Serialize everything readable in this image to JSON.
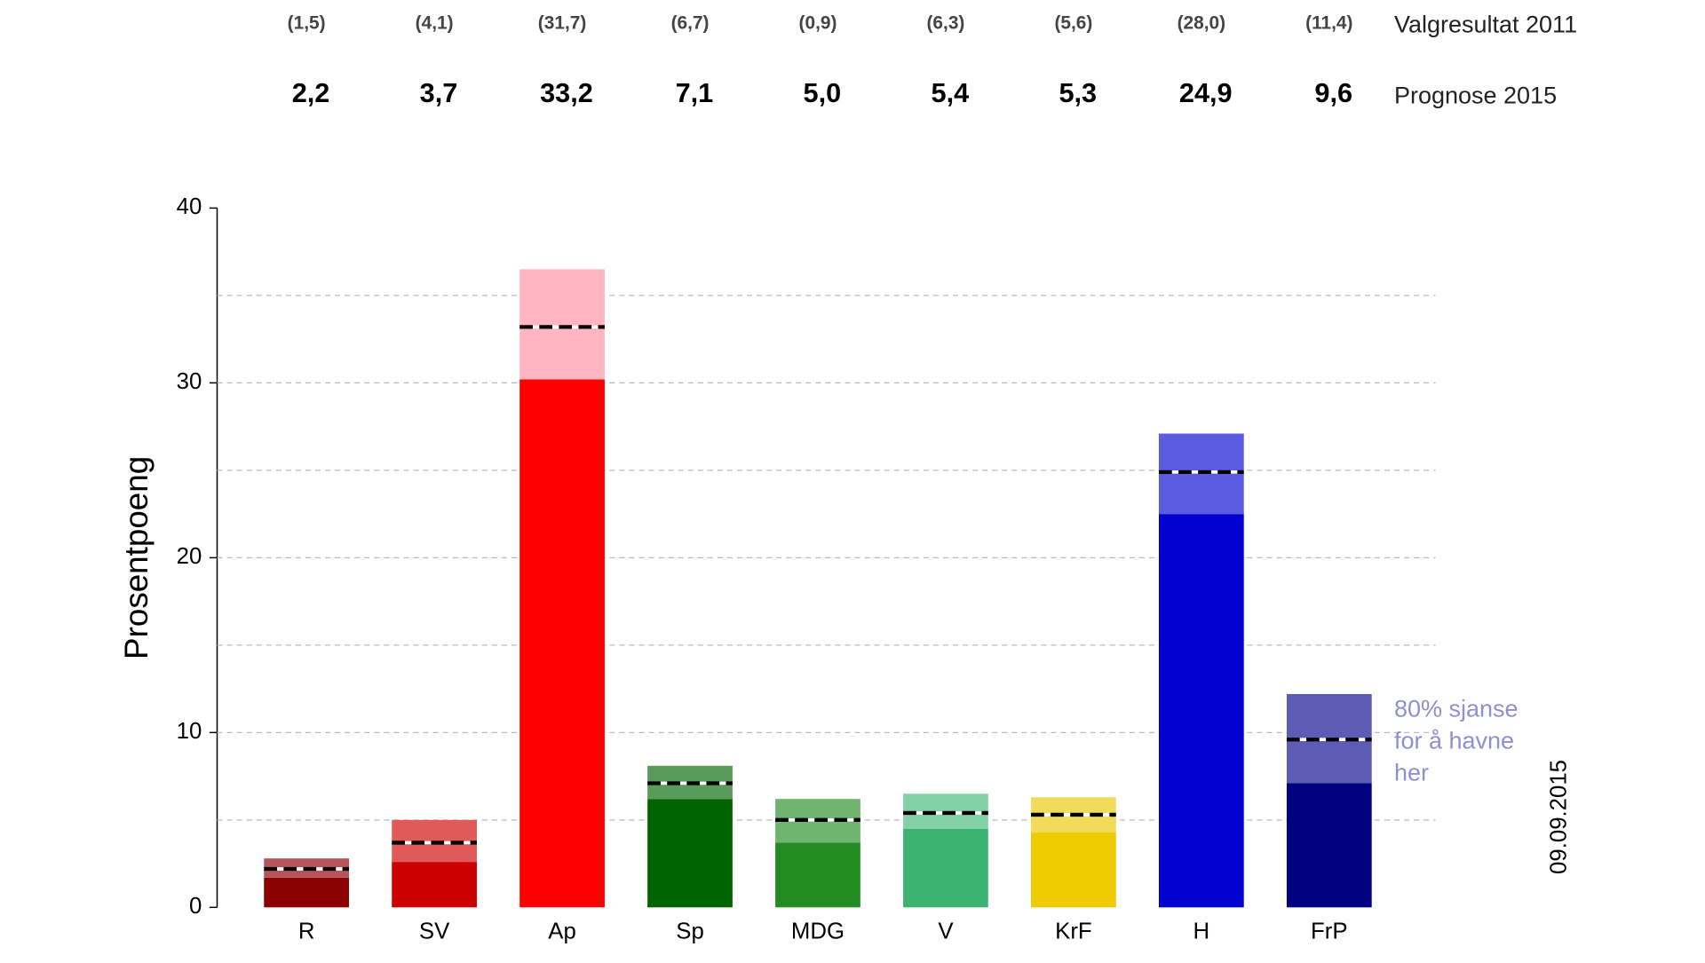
{
  "chart_data": {
    "type": "range_bar",
    "y_axis_label": "Prosentpoeng",
    "categories": [
      "R",
      "SV",
      "Ap",
      "Sp",
      "MDG",
      "V",
      "KrF",
      "H",
      "FrP"
    ],
    "results_2011": {
      "name": "Valgresultat 2011",
      "values": [
        1.5,
        4.1,
        31.7,
        6.7,
        0.9,
        6.3,
        5.6,
        28.0,
        11.4
      ],
      "value_labels": [
        "(1,5)",
        "(4,1)",
        "(31,7)",
        "(6,7)",
        "(0,9)",
        "(6,3)",
        "(5,6)",
        "(28,0)",
        "(11,4)"
      ]
    },
    "forecast": {
      "name": "Prognose 2015",
      "values": [
        2.2,
        3.7,
        33.2,
        7.1,
        5.0,
        5.4,
        5.3,
        24.9,
        9.6
      ],
      "value_labels": [
        "2,2",
        "3,7",
        "33,2",
        "7,1",
        "5,0",
        "5,4",
        "5,3",
        "24,9",
        "9,6"
      ]
    },
    "low": [
      1.7,
      2.6,
      30.2,
      6.2,
      3.7,
      4.5,
      4.3,
      22.5,
      7.1
    ],
    "high": [
      2.8,
      5.0,
      36.5,
      8.1,
      6.2,
      6.5,
      6.3,
      27.1,
      12.2
    ],
    "dark_colors": [
      "#8b0000",
      "#cc0000",
      "#ff0000",
      "#006400",
      "#228b22",
      "#3cb371",
      "#eecc00",
      "#0000d0",
      "#000080"
    ],
    "light_colors": [
      "#b5545a",
      "#e05a5a",
      "#ffb6c1",
      "#5a9a5a",
      "#6fb46f",
      "#84d1a8",
      "#f0dc5a",
      "#5c5ce0",
      "#5c5cb4"
    ],
    "ylim": [
      0,
      40
    ],
    "yticks": [
      0,
      10,
      20,
      30,
      40
    ],
    "minor_yticks": [
      5,
      15,
      25,
      35
    ],
    "grid": true,
    "annotation": [
      "80% sjanse",
      "for å havne",
      "her"
    ],
    "date": "09.09.2015"
  }
}
